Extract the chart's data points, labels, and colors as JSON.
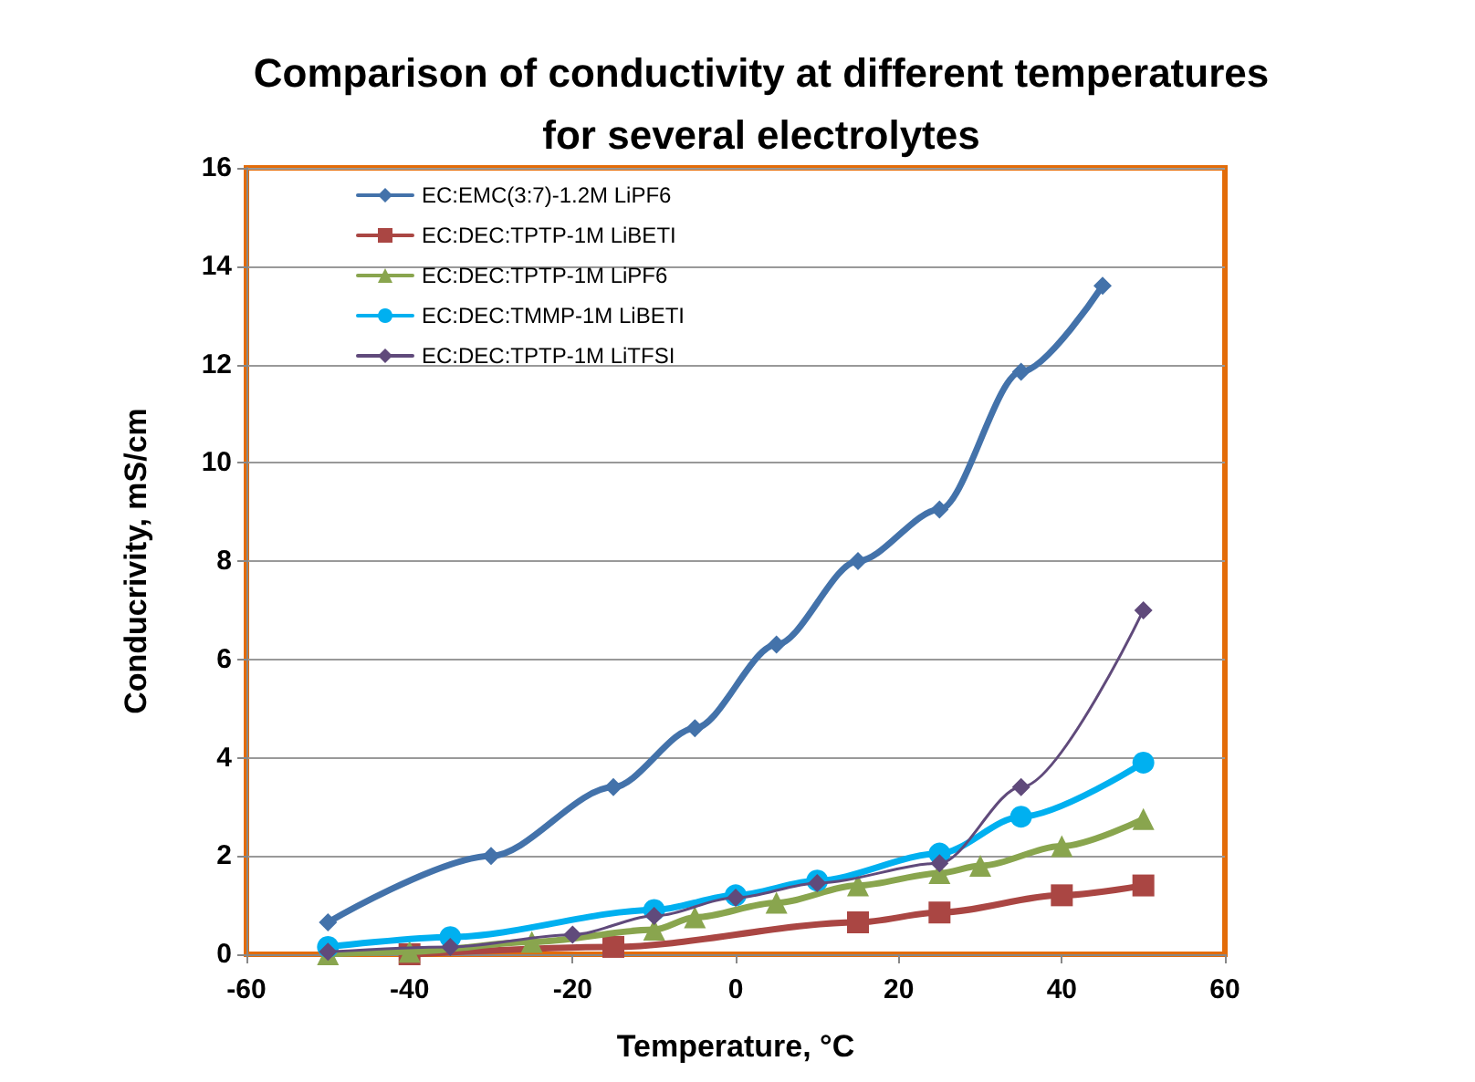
{
  "chart_data": {
    "type": "line",
    "title": "Comparison of conductivity at different temperatures\nfor several electrolytes",
    "xlabel": "Temperature, °C",
    "ylabel": "Conducrivity, mS/cm",
    "xlim": [
      -60,
      60
    ],
    "xticks": [
      -60,
      -40,
      -20,
      0,
      20,
      40,
      60
    ],
    "ylim": [
      0,
      16
    ],
    "yticks": [
      0,
      2,
      4,
      6,
      8,
      10,
      12,
      14,
      16
    ],
    "grid": "y",
    "legend": "top left",
    "series": [
      {
        "name": "EC:EMC(3:7)-1.2M LiPF6",
        "color": "#4372aa",
        "marker": "diamond",
        "x": [
          -50,
          -30,
          -15,
          -5,
          5,
          15,
          25,
          35,
          45
        ],
        "values": [
          0.65,
          2.0,
          3.4,
          4.6,
          6.3,
          8.0,
          9.05,
          11.85,
          13.6
        ]
      },
      {
        "name": "EC:DEC:TPTP-1M LiBETI",
        "color": "#aa4643",
        "marker": "square",
        "x": [
          -40,
          -15,
          15,
          25,
          40,
          50
        ],
        "values": [
          0.0,
          0.15,
          0.65,
          0.85,
          1.2,
          1.4
        ]
      },
      {
        "name": "EC:DEC:TPTP-1M LiPF6",
        "color": "#89a54e",
        "marker": "triangle",
        "x": [
          -50,
          -40,
          -25,
          -10,
          -5,
          5,
          15,
          25,
          30,
          40,
          50
        ],
        "values": [
          0.0,
          0.05,
          0.25,
          0.5,
          0.75,
          1.05,
          1.4,
          1.65,
          1.8,
          2.2,
          2.75
        ]
      },
      {
        "name": "EC:DEC:TMMP-1M LiBETI",
        "color": "#00b0f0",
        "marker": "circle",
        "x": [
          -50,
          -35,
          -10,
          0,
          10,
          25,
          35,
          50
        ],
        "values": [
          0.15,
          0.35,
          0.9,
          1.2,
          1.5,
          2.05,
          2.8,
          3.9
        ]
      },
      {
        "name": "EC:DEC:TPTP-1M LiTFSI",
        "color": "#604a7b",
        "marker": "diamond",
        "x": [
          -50,
          -35,
          -20,
          -10,
          0,
          10,
          25,
          35,
          50
        ],
        "values": [
          0.05,
          0.15,
          0.4,
          0.78,
          1.15,
          1.45,
          1.85,
          3.4,
          7.0
        ]
      }
    ]
  }
}
